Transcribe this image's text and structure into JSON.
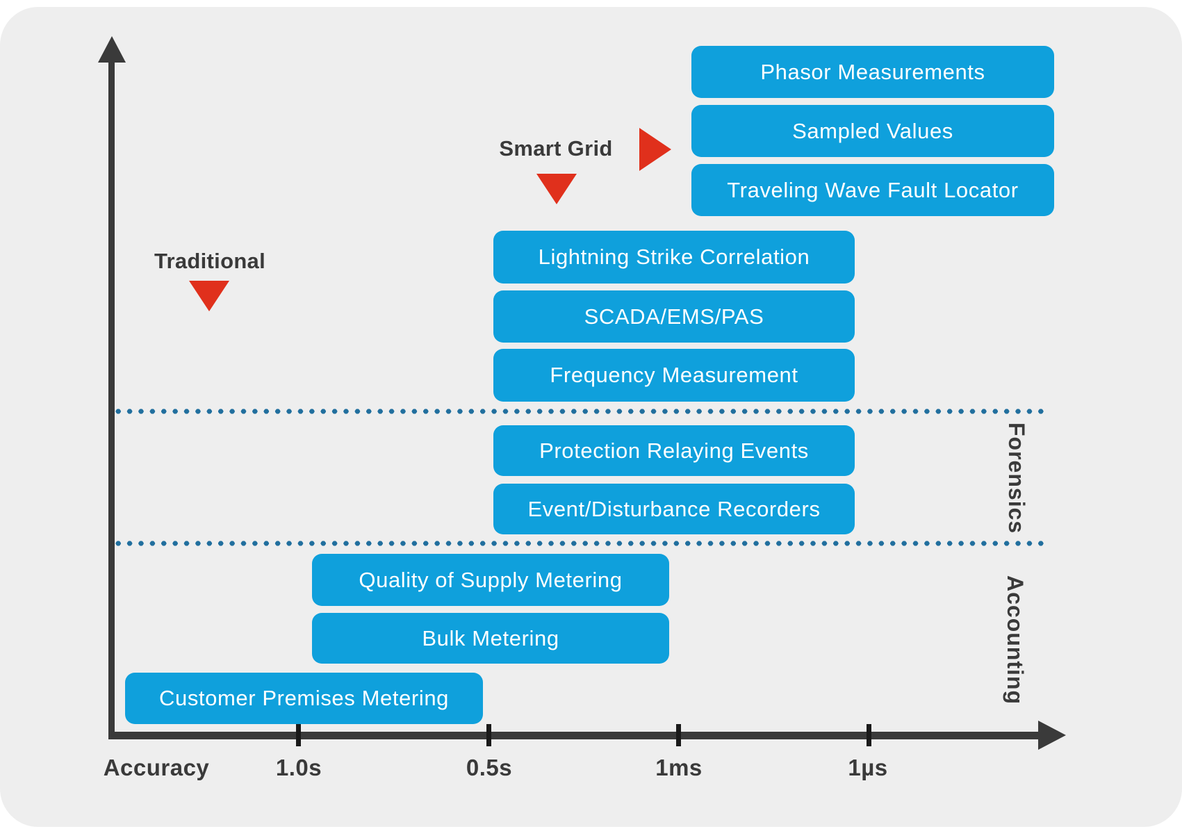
{
  "annotations": {
    "traditional": "Traditional",
    "smart_grid": "Smart Grid",
    "forensics": "Forensics",
    "accounting": "Accounting"
  },
  "axis": {
    "title": "Accuracy",
    "ticks": [
      "1.0s",
      "0.5s",
      "1ms",
      "1µs"
    ]
  },
  "boxes": [
    "Phasor Measurements",
    "Sampled Values",
    "Traveling Wave Fault Locator",
    "Lightning Strike Correlation",
    "SCADA/EMS/PAS",
    "Frequency Measurement",
    "Protection Relaying Events",
    "Event/Disturbance Recorders",
    "Quality of Supply Metering",
    "Bulk Metering",
    "Customer Premises Metering"
  ],
  "colors": {
    "box_blue": "#0fa0dc",
    "dotted_line_blue": "#216f9e",
    "arrow_red": "#e0301c",
    "axis_dark": "#3a3a3a",
    "panel_background": "#eeeeee",
    "box_text": "#ffffff"
  }
}
